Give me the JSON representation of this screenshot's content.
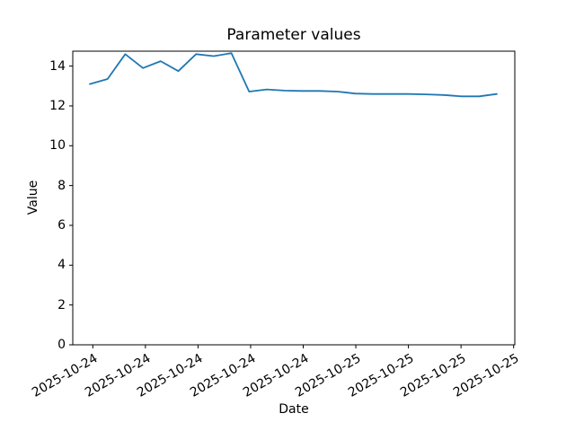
{
  "figure": {
    "background_color": "#ffffff",
    "text_color": "#000000",
    "axis_color": "#000000"
  },
  "chart_data": {
    "type": "line",
    "title": "Parameter values",
    "xlabel": "Date",
    "ylabel": "Value",
    "grid": false,
    "legend_position": "none",
    "ylim": [
      0,
      14.75
    ],
    "y_ticks": [
      0,
      2,
      4,
      6,
      8,
      10,
      12,
      14
    ],
    "x_ticklabels": [
      "2025-10-24",
      "2025-10-24",
      "2025-10-24",
      "2025-10-24",
      "2025-10-24",
      "2025-10-25",
      "2025-10-25",
      "2025-10-25",
      "2025-10-25"
    ],
    "series": [
      {
        "name": "parameter-value-line",
        "color": "#1f77b4",
        "x_hour_index": [
          0,
          1,
          2,
          3,
          4,
          5,
          6,
          7,
          8,
          9,
          10,
          11,
          12,
          13,
          14,
          15,
          16,
          17,
          18,
          19,
          20,
          21,
          22,
          23
        ],
        "values": [
          13.1,
          13.35,
          14.6,
          13.9,
          14.25,
          13.75,
          14.6,
          14.5,
          14.65,
          12.72,
          12.83,
          12.77,
          12.75,
          12.75,
          12.72,
          12.62,
          12.6,
          12.6,
          12.6,
          12.58,
          12.55,
          12.48,
          12.48,
          12.6
        ]
      }
    ]
  }
}
